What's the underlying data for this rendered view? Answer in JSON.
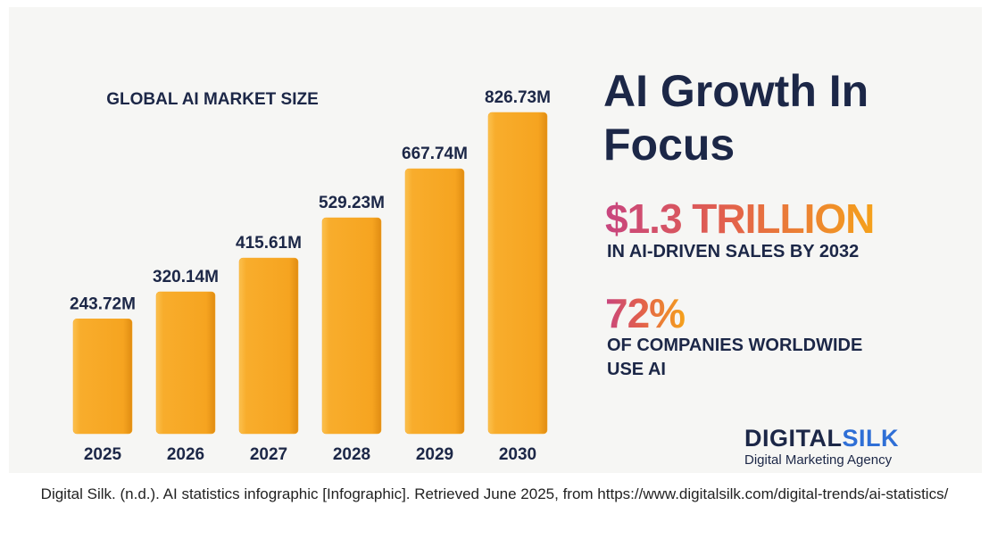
{
  "chart_data": {
    "type": "bar",
    "title": "GLOBAL AI MARKET SIZE",
    "categories": [
      "2025",
      "2026",
      "2027",
      "2028",
      "2029",
      "2030"
    ],
    "values": [
      243.72,
      320.14,
      415.61,
      529.23,
      667.74,
      826.73
    ],
    "value_labels": [
      "243.72M",
      "320.14M",
      "415.61M",
      "529.23M",
      "667.74M",
      "826.73M"
    ],
    "color": "#f8a928"
  },
  "panel": {
    "headline": "AI Growth In Focus",
    "stat1": "$1.3 TRILLION",
    "stat1_caption": "IN AI-DRIVEN SALES BY 2032",
    "stat2": "72%",
    "stat2_caption": "OF COMPANIES WORLDWIDE USE AI",
    "brand_first": "DIGITAL",
    "brand_second": "SILK",
    "tagline": "Digital Marketing Agency"
  },
  "caption": "Digital Silk. (n.d.). AI statistics infographic [Infographic]. Retrieved June 2025, from https://www.digitalsilk.com/digital-trends/ai-statistics/"
}
